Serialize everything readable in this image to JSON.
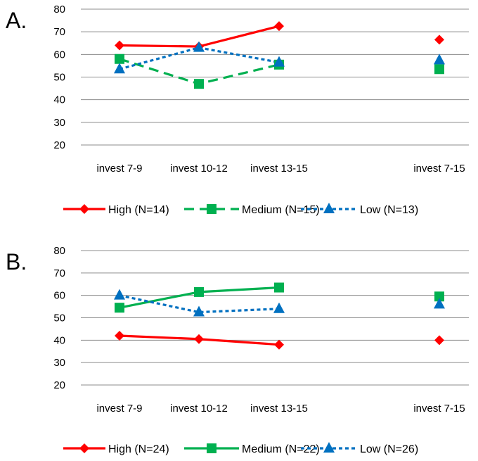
{
  "chart_data": [
    {
      "panel_label": "A.",
      "type": "line",
      "categories": [
        "invest 7-9",
        "invest 10-12",
        "invest 13-15",
        "invest 7-15"
      ],
      "ylim": [
        20,
        80
      ],
      "yticks": [
        80,
        70,
        60,
        50,
        40,
        30,
        20
      ],
      "grid": true,
      "legend_position": "bottom",
      "series": [
        {
          "name": "High (N=14)",
          "color": "#ff0000",
          "marker": "diamond",
          "dash": "solid",
          "values": [
            64,
            63.5,
            72.5,
            66.5
          ]
        },
        {
          "name": "Medium (N=15)",
          "color": "#00b050",
          "marker": "square",
          "dash": "dashed",
          "values": [
            58,
            47,
            55.5,
            53.5
          ]
        },
        {
          "name": "Low (N=13)",
          "color": "#0070c0",
          "marker": "triangle",
          "dash": "dotted",
          "values": [
            53.5,
            63,
            56.5,
            57.5
          ]
        }
      ]
    },
    {
      "panel_label": "B.",
      "type": "line",
      "categories": [
        "invest 7-9",
        "invest 10-12",
        "invest 13-15",
        "invest 7-15"
      ],
      "ylim": [
        20,
        80
      ],
      "yticks": [
        80,
        70,
        60,
        50,
        40,
        30,
        20
      ],
      "grid": true,
      "legend_position": "bottom",
      "series": [
        {
          "name": "High (N=24)",
          "color": "#ff0000",
          "marker": "diamond",
          "dash": "solid",
          "values": [
            42,
            40.5,
            38,
            40
          ]
        },
        {
          "name": "Medium (N=22)",
          "color": "#00b050",
          "marker": "square",
          "dash": "solid",
          "values": [
            54.5,
            61.5,
            63.5,
            59.5
          ]
        },
        {
          "name": "Low (N=26)",
          "color": "#0070c0",
          "marker": "triangle",
          "dash": "dotted",
          "values": [
            60,
            52.5,
            54,
            56
          ]
        }
      ]
    }
  ]
}
